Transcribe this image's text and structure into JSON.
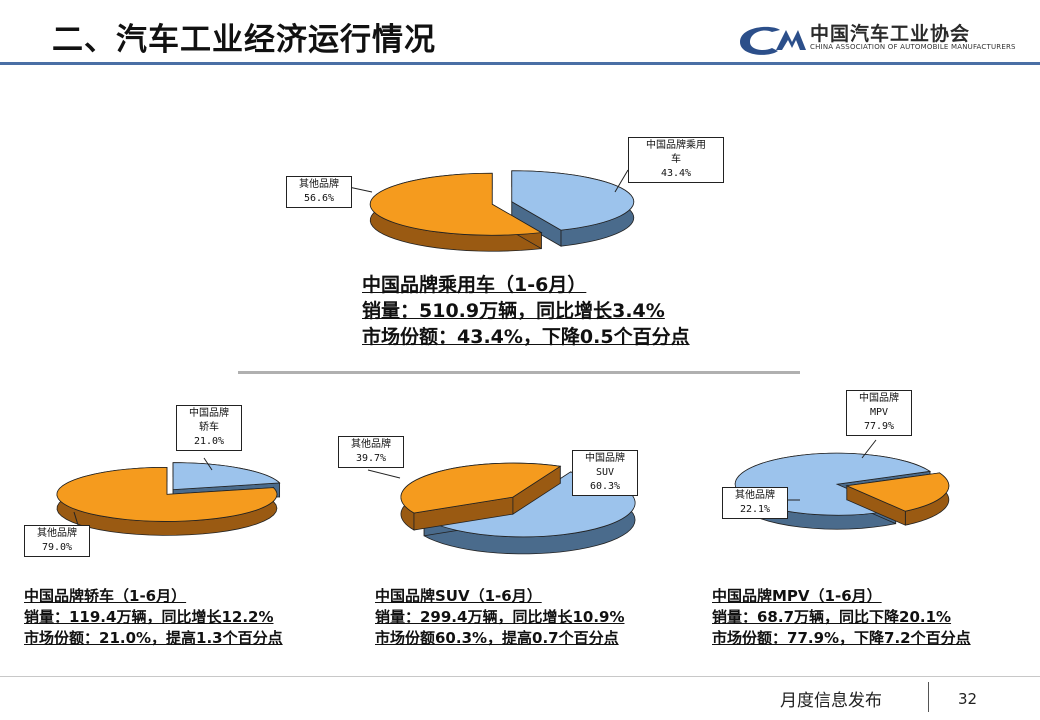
{
  "header": {
    "title": "二、汽车工业经济运行情况",
    "logo_cn": "中国汽车工业协会",
    "logo_en": "CHINA ASSOCIATION OF AUTOMOBILE MANUFACTURERS"
  },
  "colors": {
    "china_brand": "#9cc3ec",
    "other_brand": "#f59b1e",
    "header_line": "#4a6fa5"
  },
  "chart_data": [
    {
      "type": "pie",
      "categories": [
        "中国品牌乘用车",
        "其他品牌"
      ],
      "values": [
        43.4,
        56.6
      ],
      "value_labels": [
        "43.4%",
        "56.6%"
      ],
      "labels": [
        [
          "中国品牌乘用",
          "车"
        ],
        [
          "其他品牌"
        ]
      ],
      "summary": [
        "中国品牌乘用车（1-6月）",
        "销量：510.9万辆，同比增长3.4%",
        "市场份额：43.4%，下降0.5个百分点"
      ]
    },
    {
      "type": "pie",
      "categories": [
        "中国品牌轿车",
        "其他品牌"
      ],
      "values": [
        21.0,
        79.0
      ],
      "value_labels": [
        "21.0%",
        "79.0%"
      ],
      "labels": [
        [
          "中国品牌",
          "轿车"
        ],
        [
          "其他品牌"
        ]
      ],
      "summary": [
        "中国品牌轿车（1-6月）",
        "销量：119.4万辆，同比增长12.2%",
        "市场份额：21.0%，提高1.3个百分点"
      ]
    },
    {
      "type": "pie",
      "categories": [
        "中国品牌SUV",
        "其他品牌"
      ],
      "values": [
        60.3,
        39.7
      ],
      "value_labels": [
        "60.3%",
        "39.7%"
      ],
      "labels": [
        [
          "中国品牌",
          "SUV"
        ],
        [
          "其他品牌"
        ]
      ],
      "summary": [
        "中国品牌SUV（1-6月）",
        "销量：299.4万辆，同比增长10.9%",
        "市场份额60.3%，提高0.7个百分点"
      ]
    },
    {
      "type": "pie",
      "categories": [
        "中国品牌MPV",
        "其他品牌"
      ],
      "values": [
        77.9,
        22.1
      ],
      "value_labels": [
        "77.9%",
        "22.1%"
      ],
      "labels": [
        [
          "中国品牌",
          "MPV"
        ],
        [
          "其他品牌"
        ]
      ],
      "summary": [
        "中国品牌MPV（1-6月）",
        "销量：68.7万辆，同比下降20.1%",
        "市场份额：77.9%，下降7.2个百分点"
      ]
    }
  ],
  "footer": {
    "text": "月度信息发布",
    "page": "32"
  }
}
